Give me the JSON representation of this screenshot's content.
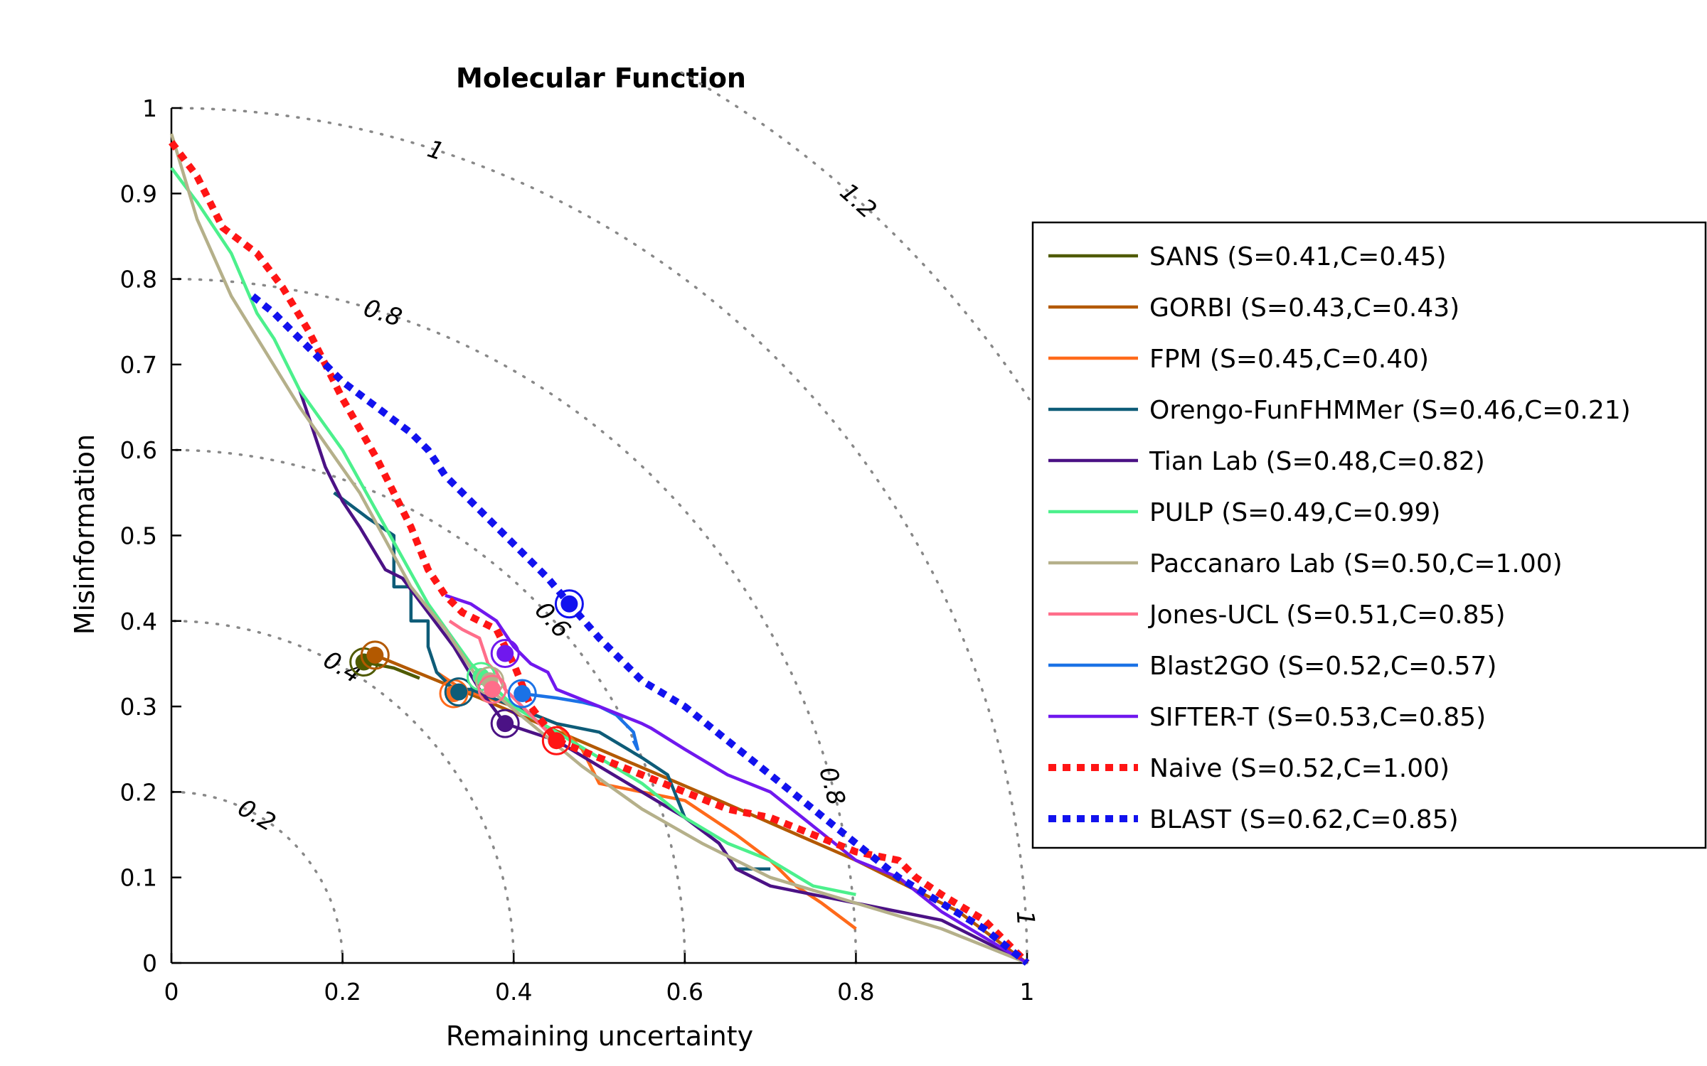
{
  "chart_data": {
    "type": "line",
    "title": "Molecular Function",
    "xlabel": "Remaining uncertainty",
    "ylabel": "Misinformation",
    "xlim": [
      0,
      1
    ],
    "ylim": [
      0,
      1
    ],
    "xticks": [
      "0",
      "0.2",
      "0.4",
      "0.6",
      "0.8",
      "1"
    ],
    "yticks": [
      "0",
      "0.1",
      "0.2",
      "0.3",
      "0.4",
      "0.5",
      "0.6",
      "0.7",
      "0.8",
      "0.9",
      "1"
    ],
    "grid": false,
    "legend_position": "right",
    "iso_contours": [
      {
        "radius": 0.2,
        "label": "0.2"
      },
      {
        "radius": 0.4,
        "label": "0.4"
      },
      {
        "radius": 0.6,
        "label": "0.6"
      },
      {
        "radius": 0.8,
        "label": "0.8"
      },
      {
        "radius": 1.0,
        "label": "1"
      },
      {
        "radius": 1.2,
        "label": "1.2"
      }
    ],
    "series": [
      {
        "name": "SANS (S=0.41,C=0.45)",
        "color": "#4f5a00",
        "dash": false,
        "x": [
          0.225,
          0.26,
          0.29
        ],
        "y": [
          0.352,
          0.345,
          0.333
        ],
        "marker": [
          0.225,
          0.352
        ]
      },
      {
        "name": "GORBI (S=0.43,C=0.43)",
        "color": "#b35900",
        "dash": false,
        "x": [
          0.238,
          0.36,
          0.5,
          0.64,
          0.8,
          0.92,
          1.0
        ],
        "y": [
          0.36,
          0.31,
          0.25,
          0.19,
          0.12,
          0.06,
          0.0
        ],
        "marker": [
          0.238,
          0.36
        ]
      },
      {
        "name": "FPM (S=0.45,C=0.40)",
        "color": "#ff6a1a",
        "dash": false,
        "x": [
          0.31,
          0.34,
          0.4,
          0.45,
          0.48,
          0.5,
          0.55,
          0.6,
          0.63,
          0.66,
          0.7,
          0.73,
          0.76,
          0.8
        ],
        "y": [
          0.34,
          0.32,
          0.3,
          0.28,
          0.25,
          0.21,
          0.2,
          0.19,
          0.17,
          0.15,
          0.12,
          0.09,
          0.07,
          0.04
        ],
        "marker": [
          0.33,
          0.315
        ]
      },
      {
        "name": "Orengo-FunFHMMer (S=0.46,C=0.21)",
        "color": "#0e5c78",
        "dash": false,
        "x": [
          0.19,
          0.23,
          0.26,
          0.26,
          0.28,
          0.28,
          0.3,
          0.3,
          0.31,
          0.33,
          0.35,
          0.4,
          0.45,
          0.5,
          0.55,
          0.58,
          0.6,
          0.64,
          0.66,
          0.7
        ],
        "y": [
          0.55,
          0.52,
          0.5,
          0.44,
          0.44,
          0.4,
          0.4,
          0.37,
          0.34,
          0.32,
          0.32,
          0.3,
          0.28,
          0.27,
          0.24,
          0.22,
          0.17,
          0.14,
          0.11,
          0.11
        ],
        "marker": [
          0.336,
          0.317
        ]
      },
      {
        "name": "Tian Lab (S=0.48,C=0.82)",
        "color": "#4b1285",
        "dash": false,
        "x": [
          0.15,
          0.16,
          0.18,
          0.2,
          0.22,
          0.25,
          0.27,
          0.3,
          0.33,
          0.36,
          0.39,
          0.45,
          0.5,
          0.55,
          0.6,
          0.64,
          0.66,
          0.7,
          0.75,
          0.8,
          0.9,
          1.0
        ],
        "y": [
          0.67,
          0.64,
          0.58,
          0.54,
          0.51,
          0.46,
          0.45,
          0.41,
          0.37,
          0.32,
          0.28,
          0.26,
          0.23,
          0.2,
          0.17,
          0.14,
          0.11,
          0.09,
          0.08,
          0.07,
          0.05,
          0.0
        ],
        "marker": [
          0.39,
          0.28
        ]
      },
      {
        "name": "PULP (S=0.49,C=0.99)",
        "color": "#4cf08c",
        "dash": false,
        "x": [
          0.0,
          0.03,
          0.07,
          0.1,
          0.12,
          0.15,
          0.2,
          0.25,
          0.3,
          0.35,
          0.4,
          0.45,
          0.5,
          0.55,
          0.6,
          0.65,
          0.7,
          0.75,
          0.8
        ],
        "y": [
          0.93,
          0.89,
          0.83,
          0.76,
          0.73,
          0.67,
          0.6,
          0.51,
          0.42,
          0.35,
          0.3,
          0.27,
          0.24,
          0.21,
          0.17,
          0.14,
          0.12,
          0.09,
          0.08
        ],
        "marker": [
          0.362,
          0.335
        ]
      },
      {
        "name": "Paccanaro Lab (S=0.50,C=1.00)",
        "color": "#b5b08a",
        "dash": false,
        "x": [
          0.0,
          0.03,
          0.07,
          0.15,
          0.22,
          0.28,
          0.32,
          0.36,
          0.42,
          0.48,
          0.55,
          0.62,
          0.7,
          0.8,
          0.9,
          1.0
        ],
        "y": [
          0.97,
          0.87,
          0.78,
          0.65,
          0.55,
          0.44,
          0.39,
          0.33,
          0.28,
          0.23,
          0.18,
          0.14,
          0.1,
          0.07,
          0.04,
          0.0
        ],
        "marker": [
          0.372,
          0.33
        ]
      },
      {
        "name": "Jones-UCL (S=0.51,C=0.85)",
        "color": "#ff6e8a",
        "dash": false,
        "x": [
          0.325,
          0.34,
          0.36,
          0.37,
          0.38,
          0.39,
          0.41,
          0.43,
          0.45
        ],
        "y": [
          0.4,
          0.39,
          0.38,
          0.35,
          0.34,
          0.32,
          0.3,
          0.28,
          0.26
        ],
        "marker": [
          0.375,
          0.32
        ]
      },
      {
        "name": "Blast2GO (S=0.52,C=0.57)",
        "color": "#1b72e6",
        "dash": false,
        "x": [
          0.41,
          0.45,
          0.48,
          0.5,
          0.52,
          0.53,
          0.54,
          0.545,
          0.54
        ],
        "y": [
          0.315,
          0.31,
          0.305,
          0.3,
          0.29,
          0.28,
          0.27,
          0.25,
          0.26
        ],
        "marker": [
          0.41,
          0.315
        ]
      },
      {
        "name": "SIFTER-T (S=0.53,C=0.85)",
        "color": "#7018ee",
        "dash": false,
        "x": [
          0.32,
          0.35,
          0.38,
          0.4,
          0.42,
          0.44,
          0.45,
          0.5,
          0.55,
          0.56,
          0.6,
          0.65,
          0.7,
          0.75,
          0.8,
          0.85,
          0.9,
          0.95,
          1.0
        ],
        "y": [
          0.43,
          0.42,
          0.4,
          0.37,
          0.35,
          0.34,
          0.32,
          0.3,
          0.28,
          0.275,
          0.25,
          0.22,
          0.2,
          0.16,
          0.12,
          0.1,
          0.06,
          0.03,
          0.0
        ],
        "marker": [
          0.39,
          0.362
        ]
      },
      {
        "name": "Naive (S=0.52,C=1.00)",
        "color": "#ff1515",
        "dash": true,
        "x": [
          0.0,
          0.03,
          0.06,
          0.1,
          0.13,
          0.16,
          0.2,
          0.24,
          0.28,
          0.3,
          0.32,
          0.34,
          0.36,
          0.38,
          0.4,
          0.42,
          0.45,
          0.5,
          0.55,
          0.6,
          0.65,
          0.7,
          0.75,
          0.8,
          0.85,
          0.87,
          0.9,
          0.95,
          1.0
        ],
        "y": [
          0.96,
          0.92,
          0.86,
          0.83,
          0.79,
          0.74,
          0.66,
          0.59,
          0.51,
          0.46,
          0.43,
          0.41,
          0.4,
          0.39,
          0.35,
          0.3,
          0.26,
          0.24,
          0.22,
          0.2,
          0.18,
          0.17,
          0.15,
          0.13,
          0.12,
          0.1,
          0.08,
          0.05,
          0.0
        ],
        "marker": [
          0.45,
          0.26
        ]
      },
      {
        "name": "BLAST (S=0.62,C=0.85)",
        "color": "#1212ee",
        "dash": true,
        "x": [
          0.095,
          0.12,
          0.16,
          0.2,
          0.24,
          0.28,
          0.3,
          0.32,
          0.36,
          0.4,
          0.44,
          0.465,
          0.5,
          0.55,
          0.6,
          0.65,
          0.7,
          0.75,
          0.8,
          0.85,
          0.9,
          0.95,
          1.0
        ],
        "y": [
          0.78,
          0.76,
          0.72,
          0.68,
          0.65,
          0.62,
          0.6,
          0.57,
          0.53,
          0.49,
          0.45,
          0.42,
          0.38,
          0.33,
          0.3,
          0.26,
          0.22,
          0.18,
          0.14,
          0.1,
          0.07,
          0.04,
          0.0
        ],
        "marker": [
          0.465,
          0.42
        ]
      }
    ]
  }
}
